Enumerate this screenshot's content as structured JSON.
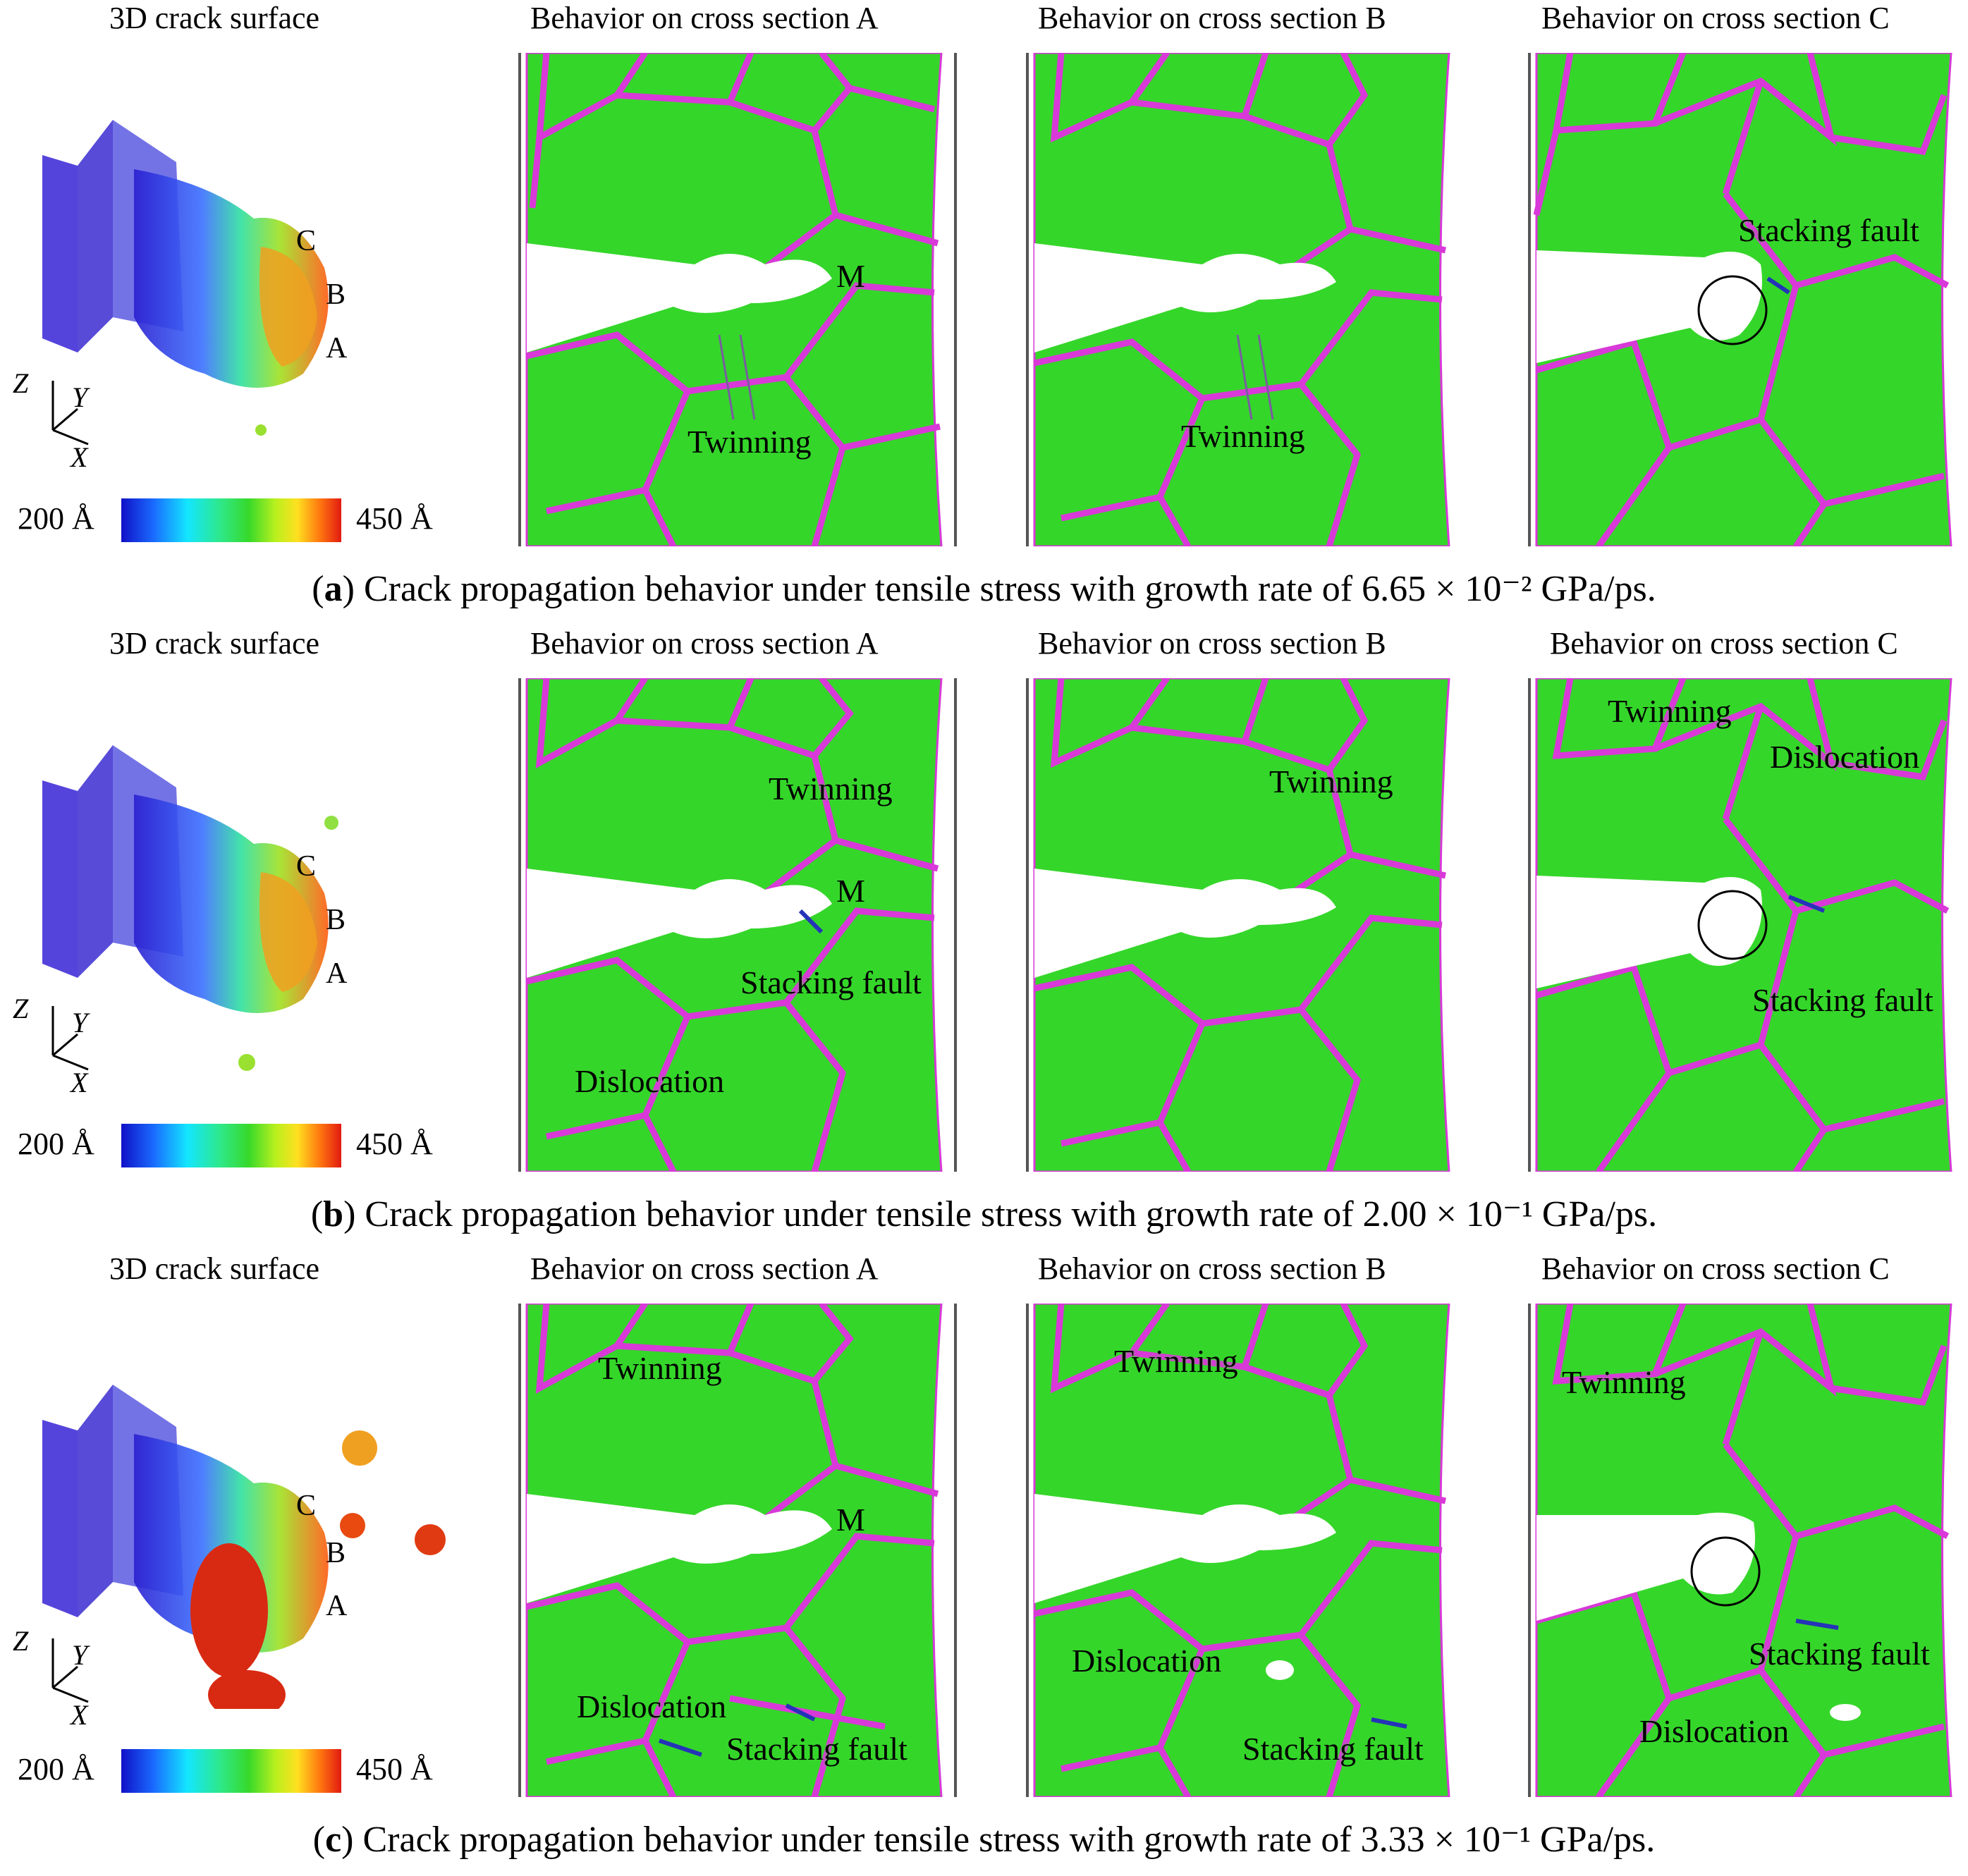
{
  "figure": {
    "column_headers": [
      "3D crack surface",
      "Behavior on cross section A",
      "Behavior on cross section B",
      "Behavior on cross section C"
    ],
    "colorbar": {
      "min_label": "200 Å",
      "max_label": "450 Å"
    },
    "axis_labels": {
      "z": "Z",
      "y": "Y",
      "x": "X"
    },
    "point_labels": {
      "c": "C",
      "b": "B",
      "a": "A"
    },
    "colors": {
      "grain": "#35d62a",
      "boundary": "#d839d8",
      "void": "#ffffff",
      "fault": "#2433b8"
    },
    "rows": [
      {
        "caption_letter": "a",
        "caption_text": " Crack propagation behavior under tensile stress with growth rate of 6.65 × 10⁻² GPa/ps.",
        "section_a": {
          "labels": [
            "M",
            "Twinning"
          ]
        },
        "section_b": {
          "labels": [
            "Twinning"
          ]
        },
        "section_c": {
          "labels": [
            "Stacking fault"
          ]
        }
      },
      {
        "caption_letter": "b",
        "caption_text": " Crack propagation behavior under tensile stress with growth rate of 2.00 × 10⁻¹ GPa/ps.",
        "section_a": {
          "labels": [
            "Twinning",
            "M",
            "Stacking fault",
            "Dislocation"
          ]
        },
        "section_b": {
          "labels": [
            "Twinning"
          ]
        },
        "section_c": {
          "labels": [
            "Twinning",
            "Dislocation",
            "Stacking fault"
          ]
        }
      },
      {
        "caption_letter": "c",
        "caption_text": " Crack propagation behavior under tensile stress with growth rate of 3.33 × 10⁻¹ GPa/ps.",
        "section_a": {
          "labels": [
            "Twinning",
            "M",
            "Dislocation",
            "Stacking fault"
          ]
        },
        "section_b": {
          "labels": [
            "Twinning",
            "Dislocation",
            "Stacking fault"
          ]
        },
        "section_c": {
          "labels": [
            "Twinning",
            "Stacking fault",
            "Dislocation"
          ]
        }
      }
    ]
  }
}
